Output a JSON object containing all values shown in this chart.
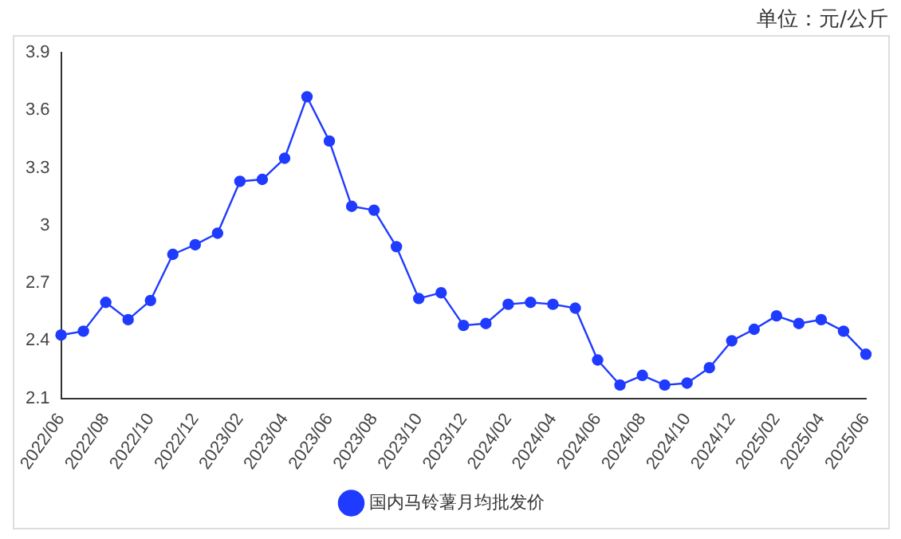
{
  "chart_data": {
    "type": "line",
    "annotations": [
      "单位：元/公斤"
    ],
    "categories": [
      "2022/06",
      null,
      "2022/08",
      null,
      "2022/10",
      null,
      "2022/12",
      null,
      "2023/02",
      null,
      "2023/04",
      null,
      "2023/06",
      null,
      "2023/08",
      null,
      "2023/10",
      null,
      "2023/12",
      null,
      "2024/02",
      null,
      "2024/04",
      null,
      "2024/06",
      null,
      "2024/08",
      null,
      "2024/10",
      null,
      "2024/12",
      null,
      "2025/02",
      null,
      "2025/04",
      null,
      "2025/06"
    ],
    "series": [
      {
        "name": "国内马铃薯月均批发价",
        "color": "#1f3bff",
        "values": [
          2.43,
          2.45,
          2.6,
          2.51,
          2.61,
          2.85,
          2.9,
          2.96,
          3.23,
          3.24,
          3.35,
          3.67,
          3.44,
          3.1,
          3.08,
          2.89,
          2.62,
          2.65,
          2.48,
          2.49,
          2.59,
          2.6,
          2.59,
          2.57,
          2.3,
          2.17,
          2.22,
          2.17,
          2.18,
          2.26,
          2.4,
          2.46,
          2.53,
          2.49,
          2.51,
          2.45,
          2.33
        ]
      }
    ],
    "ylim": [
      2.1,
      3.9
    ],
    "yticks": [
      2.1,
      2.4,
      2.7,
      3,
      3.3,
      3.6,
      3.9
    ],
    "grid": false,
    "legend": "bottom",
    "marker": "circle",
    "line_style": "solid"
  }
}
